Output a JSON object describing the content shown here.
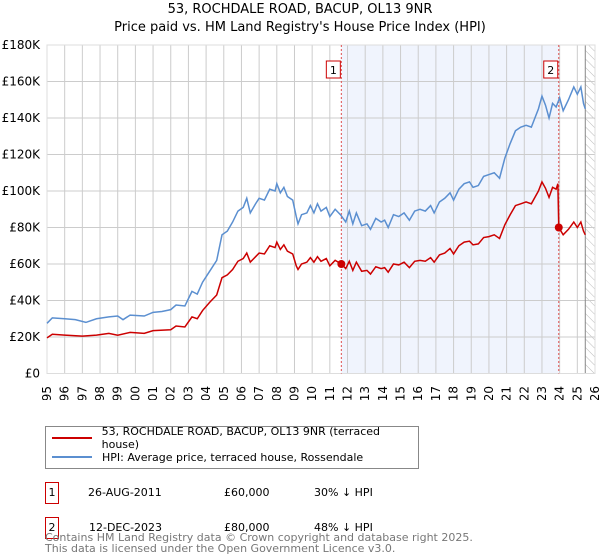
{
  "chart_data": {
    "type": "line",
    "title": "53, ROCHDALE ROAD, BACUP, OL13 9NR",
    "subtitle": "Price paid vs. HM Land Registry's House Price Index (HPI)",
    "xlim": [
      1995,
      2026
    ],
    "ylim": [
      0,
      180000
    ],
    "x_ticks": [
      "1995",
      "1996",
      "1997",
      "1998",
      "1999",
      "2000",
      "2001",
      "2002",
      "2003",
      "2004",
      "2005",
      "2006",
      "2007",
      "2008",
      "2009",
      "2010",
      "2011",
      "2012",
      "2013",
      "2014",
      "2015",
      "2016",
      "2017",
      "2018",
      "2019",
      "2020",
      "2021",
      "2022",
      "2023",
      "2024",
      "2025",
      "2026"
    ],
    "y_ticks": [
      {
        "v": 0,
        "label": "£0"
      },
      {
        "v": 20000,
        "label": "£20K"
      },
      {
        "v": 40000,
        "label": "£40K"
      },
      {
        "v": 60000,
        "label": "£60K"
      },
      {
        "v": 80000,
        "label": "£80K"
      },
      {
        "v": 100000,
        "label": "£100K"
      },
      {
        "v": 120000,
        "label": "£120K"
      },
      {
        "v": 140000,
        "label": "£140K"
      },
      {
        "v": 160000,
        "label": "£160K"
      },
      {
        "v": 180000,
        "label": "£180K"
      }
    ],
    "grid": true,
    "shaded_range": [
      2011.65,
      2023.95
    ],
    "future_hatch_from": 2025.45,
    "series": [
      {
        "name": "53, ROCHDALE ROAD, BACUP, OL13 9NR (terraced house)",
        "color": "#cc0000",
        "unit": "K",
        "points": [
          [
            1995,
            19.5
          ],
          [
            1995.3,
            21.5
          ],
          [
            1996,
            21
          ],
          [
            1997,
            20.5
          ],
          [
            1997.8,
            21
          ],
          [
            1998.5,
            22
          ],
          [
            1999,
            21
          ],
          [
            1999.7,
            22.5
          ],
          [
            2000.5,
            22
          ],
          [
            2001,
            23.5
          ],
          [
            2002,
            24
          ],
          [
            2002.3,
            26
          ],
          [
            2002.8,
            25.5
          ],
          [
            2003.2,
            31
          ],
          [
            2003.5,
            30
          ],
          [
            2003.8,
            34.5
          ],
          [
            2004.2,
            39
          ],
          [
            2004.6,
            43
          ],
          [
            2004.9,
            52.5
          ],
          [
            2005.2,
            54
          ],
          [
            2005.5,
            57
          ],
          [
            2005.8,
            61.5
          ],
          [
            2006.1,
            63
          ],
          [
            2006.3,
            66
          ],
          [
            2006.5,
            61
          ],
          [
            2006.8,
            64
          ],
          [
            2007.0,
            66
          ],
          [
            2007.3,
            65.5
          ],
          [
            2007.6,
            70
          ],
          [
            2007.9,
            69
          ],
          [
            2008.0,
            72
          ],
          [
            2008.2,
            68
          ],
          [
            2008.4,
            70.5
          ],
          [
            2008.6,
            67
          ],
          [
            2008.9,
            65.5
          ],
          [
            2009.1,
            59
          ],
          [
            2009.2,
            57
          ],
          [
            2009.4,
            60
          ],
          [
            2009.7,
            61
          ],
          [
            2009.9,
            63.5
          ],
          [
            2010.1,
            61
          ],
          [
            2010.3,
            64
          ],
          [
            2010.5,
            61.5
          ],
          [
            2010.8,
            63
          ],
          [
            2011.0,
            59
          ],
          [
            2011.3,
            62
          ],
          [
            2011.65,
            60
          ],
          [
            2011.9,
            57.5
          ],
          [
            2012.1,
            61.5
          ],
          [
            2012.3,
            56.5
          ],
          [
            2012.5,
            61
          ],
          [
            2012.8,
            56
          ],
          [
            2013.1,
            56.5
          ],
          [
            2013.3,
            54.5
          ],
          [
            2013.6,
            58.5
          ],
          [
            2013.9,
            57.5
          ],
          [
            2014.1,
            58
          ],
          [
            2014.3,
            55.5
          ],
          [
            2014.6,
            60
          ],
          [
            2014.9,
            59.5
          ],
          [
            2015.2,
            61
          ],
          [
            2015.5,
            58
          ],
          [
            2015.8,
            61.5
          ],
          [
            2016.1,
            62
          ],
          [
            2016.4,
            61.5
          ],
          [
            2016.7,
            63.5
          ],
          [
            2016.9,
            61
          ],
          [
            2017.2,
            65
          ],
          [
            2017.5,
            66
          ],
          [
            2017.8,
            68.5
          ],
          [
            2018.0,
            65.5
          ],
          [
            2018.3,
            70
          ],
          [
            2018.6,
            72
          ],
          [
            2018.9,
            72.5
          ],
          [
            2019.1,
            70.5
          ],
          [
            2019.4,
            71
          ],
          [
            2019.7,
            74.5
          ],
          [
            2020.0,
            75
          ],
          [
            2020.3,
            76
          ],
          [
            2020.6,
            74
          ],
          [
            2020.9,
            81.5
          ],
          [
            2021.2,
            87
          ],
          [
            2021.5,
            92
          ],
          [
            2021.8,
            93
          ],
          [
            2022.1,
            94
          ],
          [
            2022.4,
            93
          ],
          [
            2022.6,
            96.5
          ],
          [
            2022.8,
            100
          ],
          [
            2023.0,
            105
          ],
          [
            2023.2,
            101.5
          ],
          [
            2023.4,
            96.5
          ],
          [
            2023.6,
            102
          ],
          [
            2023.8,
            101
          ],
          [
            2023.9,
            104
          ],
          [
            2023.95,
            80
          ],
          [
            2024.2,
            76
          ],
          [
            2024.5,
            79
          ],
          [
            2024.8,
            83
          ],
          [
            2025.0,
            80
          ],
          [
            2025.2,
            83
          ],
          [
            2025.35,
            78
          ],
          [
            2025.45,
            76
          ]
        ]
      },
      {
        "name": "HPI: Average price, terraced house, Rossendale",
        "color": "#5b8fd0",
        "unit": "K",
        "points": [
          [
            1995.0,
            27.5
          ],
          [
            1995.3,
            30.5
          ],
          [
            1996,
            30
          ],
          [
            1996.6,
            29.5
          ],
          [
            1997.2,
            28
          ],
          [
            1997.8,
            30
          ],
          [
            1998.5,
            31
          ],
          [
            1999,
            31.5
          ],
          [
            1999.3,
            29.5
          ],
          [
            1999.7,
            32
          ],
          [
            2000.5,
            31.5
          ],
          [
            2001,
            33.5
          ],
          [
            2001.5,
            34
          ],
          [
            2002,
            35
          ],
          [
            2002.3,
            37.5
          ],
          [
            2002.8,
            37
          ],
          [
            2003.2,
            45
          ],
          [
            2003.5,
            43.5
          ],
          [
            2003.8,
            50
          ],
          [
            2004.2,
            56
          ],
          [
            2004.6,
            62
          ],
          [
            2004.9,
            76
          ],
          [
            2005.2,
            78
          ],
          [
            2005.5,
            83
          ],
          [
            2005.8,
            89
          ],
          [
            2006.1,
            91
          ],
          [
            2006.3,
            96
          ],
          [
            2006.5,
            88
          ],
          [
            2006.8,
            93
          ],
          [
            2007.0,
            96
          ],
          [
            2007.3,
            95
          ],
          [
            2007.6,
            101
          ],
          [
            2007.9,
            100
          ],
          [
            2008.0,
            104
          ],
          [
            2008.2,
            99
          ],
          [
            2008.4,
            102
          ],
          [
            2008.6,
            97
          ],
          [
            2008.9,
            95
          ],
          [
            2009.1,
            86
          ],
          [
            2009.2,
            82
          ],
          [
            2009.4,
            87
          ],
          [
            2009.7,
            88
          ],
          [
            2009.9,
            92
          ],
          [
            2010.1,
            88
          ],
          [
            2010.3,
            93
          ],
          [
            2010.5,
            89
          ],
          [
            2010.8,
            91
          ],
          [
            2011.0,
            86
          ],
          [
            2011.3,
            90
          ],
          [
            2011.6,
            87
          ],
          [
            2011.9,
            83
          ],
          [
            2012.1,
            89
          ],
          [
            2012.3,
            82
          ],
          [
            2012.5,
            88
          ],
          [
            2012.8,
            81
          ],
          [
            2013.1,
            82
          ],
          [
            2013.3,
            79
          ],
          [
            2013.6,
            85
          ],
          [
            2013.9,
            83
          ],
          [
            2014.1,
            84
          ],
          [
            2014.3,
            80
          ],
          [
            2014.6,
            87
          ],
          [
            2014.9,
            86
          ],
          [
            2015.2,
            88
          ],
          [
            2015.5,
            84
          ],
          [
            2015.8,
            89
          ],
          [
            2016.1,
            90
          ],
          [
            2016.4,
            89
          ],
          [
            2016.7,
            92
          ],
          [
            2016.9,
            88
          ],
          [
            2017.2,
            94
          ],
          [
            2017.5,
            96
          ],
          [
            2017.8,
            99
          ],
          [
            2018.0,
            95
          ],
          [
            2018.3,
            101
          ],
          [
            2018.6,
            104
          ],
          [
            2018.9,
            105
          ],
          [
            2019.1,
            102
          ],
          [
            2019.4,
            103
          ],
          [
            2019.7,
            108
          ],
          [
            2020.0,
            109
          ],
          [
            2020.3,
            110
          ],
          [
            2020.6,
            107
          ],
          [
            2020.9,
            118
          ],
          [
            2021.2,
            126
          ],
          [
            2021.5,
            133
          ],
          [
            2021.8,
            135
          ],
          [
            2022.1,
            136
          ],
          [
            2022.4,
            135
          ],
          [
            2022.6,
            140
          ],
          [
            2022.8,
            145
          ],
          [
            2023.0,
            152
          ],
          [
            2023.2,
            147
          ],
          [
            2023.4,
            140
          ],
          [
            2023.6,
            148
          ],
          [
            2023.8,
            146
          ],
          [
            2024.0,
            151
          ],
          [
            2024.2,
            144
          ],
          [
            2024.5,
            150
          ],
          [
            2024.8,
            157
          ],
          [
            2025.0,
            153
          ],
          [
            2025.2,
            157
          ],
          [
            2025.35,
            148
          ],
          [
            2025.45,
            145
          ]
        ]
      }
    ],
    "sales": [
      {
        "label": "1",
        "x": 2011.65,
        "y": 60000
      },
      {
        "label": "2",
        "x": 2023.95,
        "y": 80000
      }
    ]
  },
  "legend": {
    "series1": "53, ROCHDALE ROAD, BACUP, OL13 9NR (terraced house)",
    "series2": "HPI: Average price, terraced house, Rossendale"
  },
  "transactions": [
    {
      "num": "1",
      "date": "26-AUG-2011",
      "price": "£60,000",
      "hpi": "30% ↓ HPI"
    },
    {
      "num": "2",
      "date": "12-DEC-2023",
      "price": "£80,000",
      "hpi": "48% ↓ HPI"
    }
  ],
  "footer": {
    "line1": "Contains HM Land Registry data © Crown copyright and database right 2025.",
    "line2": "This data is licensed under the Open Government Licence v3.0."
  }
}
